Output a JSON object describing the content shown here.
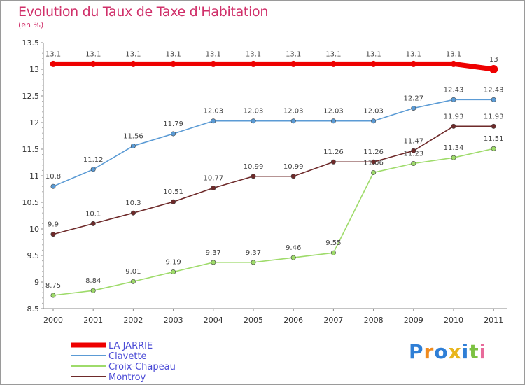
{
  "title": "Evolution du Taux de Taxe d'Habitation",
  "subtitle": "(en %)",
  "logo": {
    "text": "Proxiti",
    "colors": [
      "#2f7fd6",
      "#f08a1c",
      "#2f7fd6",
      "#e8b51c",
      "#2f7fd6",
      "#7cc242",
      "#e86a9a"
    ]
  },
  "chart_data": {
    "type": "line",
    "title": "Evolution du Taux de Taxe d'Habitation",
    "ylabel": "(en %)",
    "xlabel": "",
    "x": [
      "2000",
      "2001",
      "2002",
      "2003",
      "2004",
      "2005",
      "2006",
      "2007",
      "2008",
      "2009",
      "2010",
      "2011"
    ],
    "ylim": [
      8.5,
      13.5
    ],
    "yticks": [
      "8.5",
      "9",
      "9.5",
      "10",
      "10.5",
      "11",
      "11.5",
      "12",
      "12.5",
      "13",
      "13.5"
    ],
    "grid": false,
    "legend_position": "bottom-left",
    "series": [
      {
        "name": "LA JARRIE",
        "color": "#ee0000",
        "values": [
          13.1,
          13.1,
          13.1,
          13.1,
          13.1,
          13.1,
          13.1,
          13.1,
          13.1,
          13.1,
          13.1,
          13
        ],
        "labels": [
          "13.1",
          "13.1",
          "13.1",
          "13.1",
          "13.1",
          "13.1",
          "13.1",
          "13.1",
          "13.1",
          "13.1",
          "13.1",
          "13"
        ]
      },
      {
        "name": "Clavette",
        "color": "#5b9bd5",
        "values": [
          10.8,
          11.12,
          11.56,
          11.79,
          12.03,
          12.03,
          12.03,
          12.03,
          12.03,
          12.27,
          12.43,
          12.43
        ],
        "labels": [
          "10.8",
          "11.12",
          "11.56",
          "11.79",
          "12.03",
          "12.03",
          "12.03",
          "12.03",
          "12.03",
          "12.27",
          "12.43",
          "12.43"
        ]
      },
      {
        "name": "Croix-Chapeau",
        "color": "#9edb6a",
        "values": [
          8.75,
          8.84,
          9.01,
          9.19,
          9.37,
          9.37,
          9.46,
          9.55,
          11.06,
          11.23,
          11.34,
          11.51
        ],
        "labels": [
          "8.75",
          "8.84",
          "9.01",
          "9.19",
          "9.37",
          "9.37",
          "9.46",
          "9.55",
          "11.06",
          "11.23",
          "11.34",
          "11.51"
        ]
      },
      {
        "name": "Montroy",
        "color": "#6e2a2a",
        "values": [
          9.9,
          10.1,
          10.3,
          10.51,
          10.77,
          10.99,
          10.99,
          11.26,
          11.26,
          11.47,
          11.93,
          11.93
        ],
        "labels": [
          "9.9",
          "10.1",
          "10.3",
          "10.51",
          "10.77",
          "10.99",
          "10.99",
          "11.26",
          "11.26",
          "11.47",
          "11.93",
          "11.93"
        ]
      }
    ]
  }
}
